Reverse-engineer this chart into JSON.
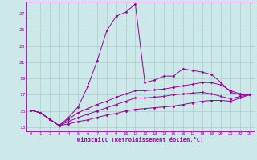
{
  "xlabel": "Windchill (Refroidissement éolien,°C)",
  "background_color": "#cce8e8",
  "grid_color": "#aacccc",
  "line_color": "#990099",
  "xlim": [
    -0.5,
    23.5
  ],
  "ylim": [
    12.5,
    28.5
  ],
  "yticks": [
    13,
    15,
    17,
    19,
    21,
    23,
    25,
    27
  ],
  "xticks": [
    0,
    1,
    2,
    3,
    4,
    5,
    6,
    7,
    8,
    9,
    10,
    11,
    12,
    13,
    14,
    15,
    16,
    17,
    18,
    19,
    20,
    21,
    22,
    23
  ],
  "series": [
    [
      15.1,
      14.8,
      14.0,
      13.2,
      14.2,
      15.5,
      18.0,
      21.2,
      24.9,
      26.7,
      27.2,
      28.2,
      18.5,
      18.8,
      19.3,
      19.3,
      20.2,
      20.0,
      19.8,
      19.5,
      18.5,
      17.3,
      17.0,
      17.0
    ],
    [
      15.1,
      14.8,
      14.0,
      13.2,
      14.0,
      14.8,
      15.3,
      15.8,
      16.2,
      16.7,
      17.1,
      17.5,
      17.5,
      17.6,
      17.7,
      17.9,
      18.1,
      18.3,
      18.5,
      18.5,
      18.2,
      17.5,
      17.1,
      17.0
    ],
    [
      15.1,
      14.8,
      14.0,
      13.2,
      13.7,
      14.2,
      14.6,
      15.0,
      15.4,
      15.8,
      16.2,
      16.6,
      16.6,
      16.7,
      16.8,
      17.0,
      17.1,
      17.2,
      17.3,
      17.1,
      16.8,
      16.5,
      16.8,
      17.0
    ],
    [
      15.1,
      14.8,
      14.0,
      13.2,
      13.4,
      13.7,
      13.9,
      14.2,
      14.5,
      14.7,
      15.0,
      15.2,
      15.3,
      15.4,
      15.5,
      15.6,
      15.8,
      16.0,
      16.2,
      16.3,
      16.3,
      16.2,
      16.6,
      17.0
    ]
  ]
}
